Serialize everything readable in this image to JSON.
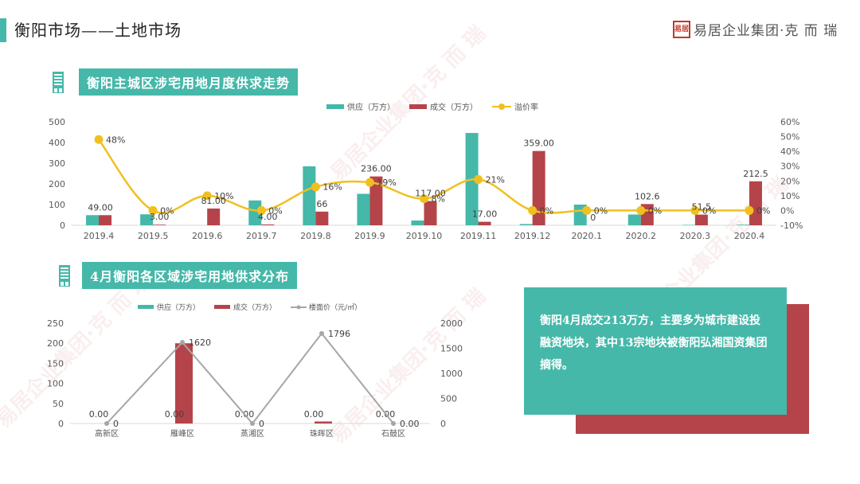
{
  "header": {
    "title": "衡阳市场——土地市场",
    "logo_seal": "易居",
    "logo_text": "易居企业集团·克 而 瑞"
  },
  "section1": {
    "title": "衡阳主城区涉宅用地月度供求走势",
    "legend": [
      "供应（万方）",
      "成交（万方）",
      "溢价率"
    ]
  },
  "section2": {
    "title": "4月衡阳各区域涉宅用地供求分布",
    "legend": [
      "供应（万方）",
      "成交（万方）",
      "楼面价（元/㎡）"
    ]
  },
  "info_box": {
    "text": "衡阳4月成交213万方，主要多为城市建设投融资地块，其中13宗地块被衡阳弘湘国资集团摘得。"
  },
  "colors": {
    "supply": "#45b8a9",
    "deal": "#b5444a",
    "premium": "#f0c020",
    "floor_price": "#a6a6a6",
    "accent": "#45b8a9"
  },
  "chart_data": [
    {
      "type": "bar",
      "title": "衡阳主城区涉宅用地月度供求走势",
      "categories": [
        "2019.4",
        "2019.5",
        "2019.6",
        "2019.7",
        "2019.8",
        "2019.9",
        "2019.10",
        "2019.11",
        "2019.12",
        "2020.1",
        "2020.2",
        "2020.3",
        "2020.4"
      ],
      "series": [
        {
          "name": "供应（万方）",
          "type": "bar",
          "axis": "left",
          "values": [
            49,
            53,
            0,
            120,
            285,
            152,
            23,
            446,
            6,
            100,
            52,
            2,
            3
          ]
        },
        {
          "name": "成交（万方）",
          "type": "bar",
          "axis": "left",
          "values": [
            49,
            3,
            81,
            4,
            66,
            236,
            117,
            17,
            359,
            0,
            102.6,
            51.5,
            212.5
          ],
          "labels": [
            "49.00",
            "3.00",
            "81.00",
            "4.00",
            "66",
            "236.00",
            "117.00",
            "17.00",
            "359.00",
            "0",
            "102.6",
            "51.5",
            "212.5"
          ]
        },
        {
          "name": "溢价率",
          "type": "line",
          "axis": "right",
          "values": [
            48,
            0,
            10,
            0,
            16,
            19,
            8,
            21,
            0,
            0,
            0,
            0,
            0
          ],
          "labels": [
            "48%",
            "0%",
            "10%",
            "0%",
            "16%",
            "19%",
            "8%",
            "21%",
            "0%",
            "0%",
            "0%",
            "0%",
            "0%"
          ]
        }
      ],
      "ylim": [
        0,
        500
      ],
      "yticks": [
        "0",
        "100",
        "200",
        "300",
        "400",
        "500"
      ],
      "y2lim": [
        -10,
        60
      ],
      "y2ticks": [
        "-10%",
        "0%",
        "10%",
        "20%",
        "30%",
        "40%",
        "50%",
        "60%"
      ],
      "legend_position": "top"
    },
    {
      "type": "bar",
      "title": "4月衡阳各区域涉宅用地供求分布",
      "categories": [
        "高新区",
        "雁峰区",
        "蒸湘区",
        "珠晖区",
        "石鼓区"
      ],
      "series": [
        {
          "name": "供应（万方）",
          "type": "bar",
          "axis": "left",
          "values": [
            0,
            0,
            0,
            0,
            0
          ],
          "labels": [
            "0.00",
            "0.00",
            "0.00",
            "0.00",
            "0.00"
          ]
        },
        {
          "name": "成交（万方）",
          "type": "bar",
          "axis": "left",
          "values": [
            0,
            200,
            0,
            5,
            0
          ]
        },
        {
          "name": "楼面价（元/㎡）",
          "type": "line",
          "axis": "right",
          "values": [
            0,
            1620,
            0,
            1796,
            0
          ],
          "labels": [
            "0",
            "1620",
            "0",
            "1796",
            "0.00"
          ]
        }
      ],
      "ylim": [
        0,
        250
      ],
      "yticks": [
        "0",
        "50",
        "100",
        "150",
        "200",
        "250"
      ],
      "y2lim": [
        0,
        2000
      ],
      "y2ticks": [
        "0",
        "500",
        "1000",
        "1500",
        "2000"
      ],
      "legend_position": "top"
    }
  ]
}
